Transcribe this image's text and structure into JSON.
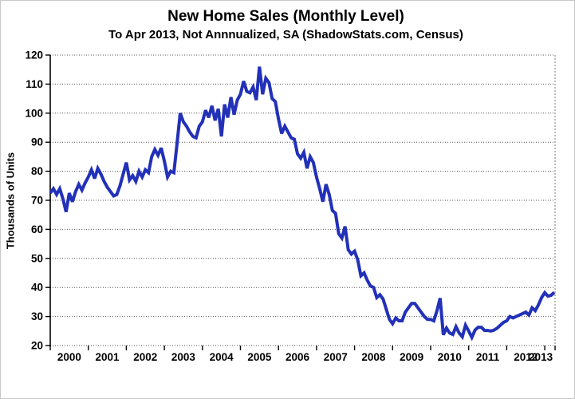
{
  "chart_data": {
    "type": "line",
    "title": "New Home Sales (Monthly Level)",
    "subtitle": "To Apr 2013, Not Annnualized, SA (ShadowStats.com, Census)",
    "ylabel": "Thousands of Units",
    "xlabel": "",
    "frequency": "monthly",
    "x_start": "2000-01",
    "x_end": "2013-04",
    "x_tick_labels": [
      "2000",
      "2001",
      "2002",
      "2003",
      "2004",
      "2005",
      "2006",
      "2007",
      "2008",
      "2009",
      "2010",
      "2011",
      "2012",
      "2013"
    ],
    "y_ticks": [
      20,
      30,
      40,
      50,
      60,
      70,
      80,
      90,
      100,
      110,
      120
    ],
    "ylim": [
      20,
      120
    ],
    "grid": "horizontal-dotted",
    "legend": "none",
    "series": [
      {
        "name": "New home sales, monthly level (thousands of units)",
        "color": "#2231b8",
        "values": [
          72.5,
          74,
          72,
          74,
          70.5,
          66,
          72.5,
          69.5,
          73,
          75.5,
          73.5,
          76,
          78,
          80.5,
          77.5,
          81,
          79,
          76.5,
          74.5,
          73,
          71.5,
          72,
          75,
          79,
          83,
          77,
          78.5,
          76.5,
          80,
          78,
          80.5,
          79.5,
          85,
          87.5,
          85.5,
          88,
          83.5,
          78,
          80,
          79.5,
          89.5,
          100,
          97,
          95.5,
          93.5,
          92,
          91.5,
          95.5,
          97,
          101,
          98.5,
          102.5,
          97.5,
          101.5,
          92,
          103,
          98.5,
          105.5,
          99.5,
          104.5,
          106.5,
          111,
          107.5,
          107,
          109,
          104.5,
          116,
          106.5,
          112,
          110.5,
          105,
          104,
          98,
          93,
          95.5,
          93.5,
          91.5,
          91,
          86,
          84.5,
          86.5,
          81,
          85,
          83,
          78,
          74,
          69.5,
          75.5,
          72,
          66.5,
          65.5,
          58.5,
          57,
          61,
          53,
          51.5,
          52.5,
          49.5,
          44,
          45,
          42.5,
          40.5,
          40,
          36.5,
          37.5,
          36,
          32.5,
          29,
          27.5,
          29.5,
          28.5,
          28.5,
          31.5,
          33,
          34.5,
          34.5,
          33,
          31.5,
          30,
          29,
          29,
          28.5,
          32,
          36.3,
          23.7,
          26,
          24.3,
          23.8,
          26.5,
          24.3,
          23,
          27,
          25,
          22.8,
          25.3,
          26.3,
          26.3,
          25.2,
          25.2,
          25,
          25.3,
          26,
          27,
          28,
          28.5,
          30,
          29.5,
          30,
          30.5,
          31,
          31.5,
          30.5,
          33,
          32,
          34,
          36.5,
          38.2,
          37,
          37.3,
          38.3
        ]
      }
    ],
    "style": {
      "line_width": 4,
      "gridline_color": "#555555",
      "axis_color": "#000000",
      "right_border_color": "#a6a6a6",
      "background": "#ffffff"
    }
  }
}
